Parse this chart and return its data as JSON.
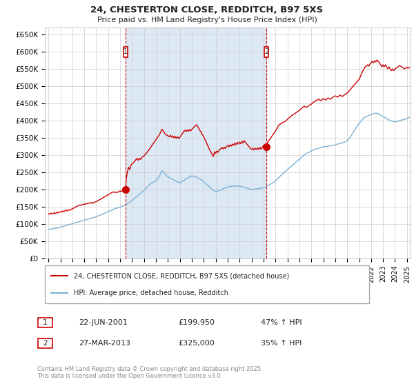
{
  "title": "24, CHESTERTON CLOSE, REDDITCH, B97 5XS",
  "subtitle": "Price paid vs. HM Land Registry's House Price Index (HPI)",
  "ylim": [
    0,
    670000
  ],
  "yticks": [
    0,
    50000,
    100000,
    150000,
    200000,
    250000,
    300000,
    350000,
    400000,
    450000,
    500000,
    550000,
    600000,
    650000
  ],
  "xlim_start": 1994.7,
  "xlim_end": 2025.3,
  "bg_color": "#ffffff",
  "chart_bg": "#ffffff",
  "shade_color": "#dde8f5",
  "grid_color": "#cccccc",
  "red_line_color": "#cc0000",
  "blue_line_color": "#7ab0d4",
  "dashed_line_color": "#cc0000",
  "marker1_x": 2001.47,
  "marker1_y": 199950,
  "marker2_x": 2013.23,
  "marker2_y": 325000,
  "legend_red": "24, CHESTERTON CLOSE, REDDITCH, B97 5XS (detached house)",
  "legend_blue": "HPI: Average price, detached house, Redditch",
  "table_rows": [
    {
      "num": "1",
      "date": "22-JUN-2001",
      "price": "£199,950",
      "change": "47% ↑ HPI"
    },
    {
      "num": "2",
      "date": "27-MAR-2013",
      "price": "£325,000",
      "change": "35% ↑ HPI"
    }
  ],
  "footer": "Contains HM Land Registry data © Crown copyright and database right 2025.\nThis data is licensed under the Open Government Licence v3.0.",
  "red_data": [
    [
      1995.0,
      130000
    ],
    [
      1995.1,
      128000
    ],
    [
      1995.2,
      132000
    ],
    [
      1995.3,
      129000
    ],
    [
      1995.4,
      131000
    ],
    [
      1995.5,
      133000
    ],
    [
      1995.6,
      130000
    ],
    [
      1995.7,
      134000
    ],
    [
      1995.8,
      132000
    ],
    [
      1995.9,
      135000
    ],
    [
      1996.0,
      136000
    ],
    [
      1996.1,
      134000
    ],
    [
      1996.2,
      138000
    ],
    [
      1996.3,
      136000
    ],
    [
      1996.4,
      139000
    ],
    [
      1996.5,
      140000
    ],
    [
      1996.6,
      138000
    ],
    [
      1996.7,
      142000
    ],
    [
      1996.8,
      140000
    ],
    [
      1996.9,
      143000
    ],
    [
      1997.0,
      144000
    ],
    [
      1997.1,
      146000
    ],
    [
      1997.2,
      148000
    ],
    [
      1997.3,
      150000
    ],
    [
      1997.4,
      152000
    ],
    [
      1997.5,
      153000
    ],
    [
      1997.6,
      155000
    ],
    [
      1997.7,
      154000
    ],
    [
      1997.8,
      156000
    ],
    [
      1997.9,
      157000
    ],
    [
      1998.0,
      158000
    ],
    [
      1998.1,
      157000
    ],
    [
      1998.2,
      160000
    ],
    [
      1998.3,
      159000
    ],
    [
      1998.4,
      161000
    ],
    [
      1998.5,
      162000
    ],
    [
      1998.6,
      160000
    ],
    [
      1998.7,
      163000
    ],
    [
      1998.8,
      161000
    ],
    [
      1998.9,
      164000
    ],
    [
      1999.0,
      165000
    ],
    [
      1999.1,
      167000
    ],
    [
      1999.2,
      169000
    ],
    [
      1999.3,
      171000
    ],
    [
      1999.4,
      173000
    ],
    [
      1999.5,
      175000
    ],
    [
      1999.6,
      177000
    ],
    [
      1999.7,
      179000
    ],
    [
      1999.8,
      181000
    ],
    [
      1999.9,
      183000
    ],
    [
      2000.0,
      185000
    ],
    [
      2000.1,
      187000
    ],
    [
      2000.2,
      189000
    ],
    [
      2000.3,
      191000
    ],
    [
      2000.4,
      193000
    ],
    [
      2000.5,
      193000
    ],
    [
      2000.6,
      191000
    ],
    [
      2000.7,
      193000
    ],
    [
      2000.8,
      192000
    ],
    [
      2000.9,
      194000
    ],
    [
      2001.0,
      196000
    ],
    [
      2001.1,
      194000
    ],
    [
      2001.2,
      197000
    ],
    [
      2001.3,
      196000
    ],
    [
      2001.47,
      199950
    ],
    [
      2001.5,
      230000
    ],
    [
      2001.6,
      250000
    ],
    [
      2001.7,
      265000
    ],
    [
      2001.8,
      258000
    ],
    [
      2001.9,
      270000
    ],
    [
      2002.0,
      275000
    ],
    [
      2002.1,
      278000
    ],
    [
      2002.2,
      282000
    ],
    [
      2002.3,
      286000
    ],
    [
      2002.4,
      290000
    ],
    [
      2002.5,
      285000
    ],
    [
      2002.6,
      291000
    ],
    [
      2002.7,
      287000
    ],
    [
      2002.8,
      293000
    ],
    [
      2002.9,
      295000
    ],
    [
      2003.0,
      298000
    ],
    [
      2003.1,
      302000
    ],
    [
      2003.2,
      306000
    ],
    [
      2003.3,
      310000
    ],
    [
      2003.4,
      315000
    ],
    [
      2003.5,
      320000
    ],
    [
      2003.6,
      325000
    ],
    [
      2003.7,
      330000
    ],
    [
      2003.8,
      335000
    ],
    [
      2003.9,
      340000
    ],
    [
      2004.0,
      345000
    ],
    [
      2004.1,
      350000
    ],
    [
      2004.2,
      355000
    ],
    [
      2004.3,
      360000
    ],
    [
      2004.4,
      368000
    ],
    [
      2004.5,
      375000
    ],
    [
      2004.6,
      370000
    ],
    [
      2004.7,
      365000
    ],
    [
      2004.8,
      360000
    ],
    [
      2004.9,
      358000
    ],
    [
      2005.0,
      356000
    ],
    [
      2005.1,
      353000
    ],
    [
      2005.2,
      358000
    ],
    [
      2005.3,
      352000
    ],
    [
      2005.4,
      356000
    ],
    [
      2005.5,
      350000
    ],
    [
      2005.6,
      354000
    ],
    [
      2005.7,
      349000
    ],
    [
      2005.8,
      353000
    ],
    [
      2005.9,
      348000
    ],
    [
      2006.0,
      352000
    ],
    [
      2006.1,
      357000
    ],
    [
      2006.2,
      362000
    ],
    [
      2006.3,
      367000
    ],
    [
      2006.4,
      372000
    ],
    [
      2006.5,
      368000
    ],
    [
      2006.6,
      373000
    ],
    [
      2006.7,
      369000
    ],
    [
      2006.8,
      374000
    ],
    [
      2006.9,
      370000
    ],
    [
      2007.0,
      375000
    ],
    [
      2007.1,
      378000
    ],
    [
      2007.2,
      382000
    ],
    [
      2007.3,
      385000
    ],
    [
      2007.4,
      388000
    ],
    [
      2007.5,
      382000
    ],
    [
      2007.6,
      376000
    ],
    [
      2007.7,
      370000
    ],
    [
      2007.8,
      365000
    ],
    [
      2007.9,
      358000
    ],
    [
      2008.0,
      352000
    ],
    [
      2008.1,
      345000
    ],
    [
      2008.2,
      338000
    ],
    [
      2008.3,
      330000
    ],
    [
      2008.4,
      322000
    ],
    [
      2008.5,
      315000
    ],
    [
      2008.6,
      308000
    ],
    [
      2008.7,
      302000
    ],
    [
      2008.8,
      296000
    ],
    [
      2008.9,
      310000
    ],
    [
      2009.0,
      305000
    ],
    [
      2009.1,
      312000
    ],
    [
      2009.2,
      308000
    ],
    [
      2009.3,
      315000
    ],
    [
      2009.4,
      318000
    ],
    [
      2009.5,
      322000
    ],
    [
      2009.6,
      318000
    ],
    [
      2009.7,
      323000
    ],
    [
      2009.8,
      319000
    ],
    [
      2009.9,
      325000
    ],
    [
      2010.0,
      328000
    ],
    [
      2010.1,
      324000
    ],
    [
      2010.2,
      330000
    ],
    [
      2010.3,
      326000
    ],
    [
      2010.4,
      332000
    ],
    [
      2010.5,
      328000
    ],
    [
      2010.6,
      335000
    ],
    [
      2010.7,
      330000
    ],
    [
      2010.8,
      337000
    ],
    [
      2010.9,
      332000
    ],
    [
      2011.0,
      338000
    ],
    [
      2011.1,
      333000
    ],
    [
      2011.2,
      340000
    ],
    [
      2011.3,
      335000
    ],
    [
      2011.4,
      342000
    ],
    [
      2011.5,
      337000
    ],
    [
      2011.6,
      332000
    ],
    [
      2011.7,
      328000
    ],
    [
      2011.8,
      324000
    ],
    [
      2011.9,
      320000
    ],
    [
      2012.0,
      316000
    ],
    [
      2012.1,
      320000
    ],
    [
      2012.2,
      315000
    ],
    [
      2012.3,
      320000
    ],
    [
      2012.4,
      316000
    ],
    [
      2012.5,
      321000
    ],
    [
      2012.6,
      316000
    ],
    [
      2012.7,
      322000
    ],
    [
      2012.8,
      317000
    ],
    [
      2012.9,
      323000
    ],
    [
      2013.0,
      328000
    ],
    [
      2013.1,
      323000
    ],
    [
      2013.2,
      329000
    ],
    [
      2013.23,
      325000
    ],
    [
      2013.3,
      335000
    ],
    [
      2013.4,
      340000
    ],
    [
      2013.5,
      345000
    ],
    [
      2013.6,
      350000
    ],
    [
      2013.7,
      355000
    ],
    [
      2013.8,
      360000
    ],
    [
      2013.9,
      365000
    ],
    [
      2014.0,
      370000
    ],
    [
      2014.1,
      376000
    ],
    [
      2014.2,
      382000
    ],
    [
      2014.3,
      388000
    ],
    [
      2014.5,
      392000
    ],
    [
      2014.7,
      396000
    ],
    [
      2014.9,
      400000
    ],
    [
      2015.0,
      404000
    ],
    [
      2015.2,
      410000
    ],
    [
      2015.4,
      416000
    ],
    [
      2015.6,
      420000
    ],
    [
      2015.8,
      425000
    ],
    [
      2016.0,
      430000
    ],
    [
      2016.2,
      436000
    ],
    [
      2016.4,
      442000
    ],
    [
      2016.6,
      438000
    ],
    [
      2016.8,
      444000
    ],
    [
      2017.0,
      448000
    ],
    [
      2017.2,
      454000
    ],
    [
      2017.4,
      458000
    ],
    [
      2017.6,
      462000
    ],
    [
      2017.8,
      458000
    ],
    [
      2018.0,
      464000
    ],
    [
      2018.2,
      460000
    ],
    [
      2018.4,
      466000
    ],
    [
      2018.6,
      462000
    ],
    [
      2018.8,
      468000
    ],
    [
      2019.0,
      472000
    ],
    [
      2019.2,
      468000
    ],
    [
      2019.4,
      474000
    ],
    [
      2019.6,
      470000
    ],
    [
      2019.8,
      476000
    ],
    [
      2020.0,
      480000
    ],
    [
      2020.2,
      488000
    ],
    [
      2020.4,
      496000
    ],
    [
      2020.6,
      504000
    ],
    [
      2020.8,
      512000
    ],
    [
      2021.0,
      520000
    ],
    [
      2021.1,
      528000
    ],
    [
      2021.2,
      536000
    ],
    [
      2021.3,
      544000
    ],
    [
      2021.4,
      550000
    ],
    [
      2021.5,
      556000
    ],
    [
      2021.6,
      558000
    ],
    [
      2021.7,
      562000
    ],
    [
      2021.8,
      558000
    ],
    [
      2021.9,
      564000
    ],
    [
      2022.0,
      568000
    ],
    [
      2022.1,
      572000
    ],
    [
      2022.2,
      568000
    ],
    [
      2022.3,
      574000
    ],
    [
      2022.4,
      570000
    ],
    [
      2022.5,
      576000
    ],
    [
      2022.6,
      572000
    ],
    [
      2022.7,
      568000
    ],
    [
      2022.8,
      562000
    ],
    [
      2022.9,
      556000
    ],
    [
      2023.0,
      562000
    ],
    [
      2023.1,
      556000
    ],
    [
      2023.2,
      562000
    ],
    [
      2023.3,
      556000
    ],
    [
      2023.4,
      550000
    ],
    [
      2023.5,
      556000
    ],
    [
      2023.6,
      550000
    ],
    [
      2023.7,
      545000
    ],
    [
      2023.8,
      550000
    ],
    [
      2023.9,
      545000
    ],
    [
      2024.0,
      550000
    ],
    [
      2024.2,
      555000
    ],
    [
      2024.4,
      560000
    ],
    [
      2024.6,
      555000
    ],
    [
      2024.8,
      550000
    ],
    [
      2025.0,
      555000
    ],
    [
      2025.1,
      552000
    ],
    [
      2025.2,
      555000
    ]
  ],
  "blue_data": [
    [
      1995.0,
      85000
    ],
    [
      1995.1,
      84000
    ],
    [
      1995.2,
      86000
    ],
    [
      1995.3,
      85000
    ],
    [
      1995.4,
      87000
    ],
    [
      1995.5,
      88000
    ],
    [
      1995.6,
      87000
    ],
    [
      1995.7,
      89000
    ],
    [
      1995.8,
      88000
    ],
    [
      1995.9,
      90000
    ],
    [
      1996.0,
      91000
    ],
    [
      1996.2,
      93000
    ],
    [
      1996.4,
      95000
    ],
    [
      1996.6,
      97000
    ],
    [
      1996.8,
      99000
    ],
    [
      1997.0,
      101000
    ],
    [
      1997.2,
      103000
    ],
    [
      1997.4,
      105000
    ],
    [
      1997.6,
      107000
    ],
    [
      1997.8,
      109000
    ],
    [
      1998.0,
      111000
    ],
    [
      1998.2,
      113000
    ],
    [
      1998.4,
      115000
    ],
    [
      1998.6,
      117000
    ],
    [
      1998.8,
      119000
    ],
    [
      1999.0,
      121000
    ],
    [
      1999.2,
      124000
    ],
    [
      1999.4,
      127000
    ],
    [
      1999.6,
      130000
    ],
    [
      1999.8,
      133000
    ],
    [
      2000.0,
      136000
    ],
    [
      2000.2,
      139000
    ],
    [
      2000.4,
      142000
    ],
    [
      2000.6,
      145000
    ],
    [
      2000.8,
      147000
    ],
    [
      2001.0,
      149000
    ],
    [
      2001.2,
      152000
    ],
    [
      2001.4,
      155000
    ],
    [
      2001.6,
      159000
    ],
    [
      2001.8,
      163000
    ],
    [
      2002.0,
      168000
    ],
    [
      2002.2,
      174000
    ],
    [
      2002.4,
      180000
    ],
    [
      2002.6,
      186000
    ],
    [
      2002.8,
      192000
    ],
    [
      2003.0,
      198000
    ],
    [
      2003.2,
      205000
    ],
    [
      2003.4,
      212000
    ],
    [
      2003.6,
      218000
    ],
    [
      2003.8,
      222000
    ],
    [
      2004.0,
      226000
    ],
    [
      2004.1,
      230000
    ],
    [
      2004.2,
      235000
    ],
    [
      2004.3,
      240000
    ],
    [
      2004.4,
      248000
    ],
    [
      2004.5,
      255000
    ],
    [
      2004.6,
      252000
    ],
    [
      2004.7,
      248000
    ],
    [
      2004.8,
      244000
    ],
    [
      2004.9,
      240000
    ],
    [
      2005.0,
      237000
    ],
    [
      2005.2,
      233000
    ],
    [
      2005.4,
      229000
    ],
    [
      2005.6,
      226000
    ],
    [
      2005.8,
      222000
    ],
    [
      2006.0,
      220000
    ],
    [
      2006.2,
      224000
    ],
    [
      2006.4,
      228000
    ],
    [
      2006.6,
      232000
    ],
    [
      2006.8,
      236000
    ],
    [
      2007.0,
      240000
    ],
    [
      2007.2,
      238000
    ],
    [
      2007.4,
      236000
    ],
    [
      2007.6,
      232000
    ],
    [
      2007.8,
      228000
    ],
    [
      2008.0,
      222000
    ],
    [
      2008.2,
      216000
    ],
    [
      2008.4,
      210000
    ],
    [
      2008.6,
      204000
    ],
    [
      2008.8,
      198000
    ],
    [
      2009.0,
      193000
    ],
    [
      2009.2,
      196000
    ],
    [
      2009.4,
      199000
    ],
    [
      2009.6,
      202000
    ],
    [
      2009.8,
      205000
    ],
    [
      2010.0,
      207000
    ],
    [
      2010.2,
      209000
    ],
    [
      2010.4,
      210000
    ],
    [
      2010.6,
      210000
    ],
    [
      2010.8,
      210000
    ],
    [
      2011.0,
      210000
    ],
    [
      2011.2,
      208000
    ],
    [
      2011.4,
      206000
    ],
    [
      2011.6,
      204000
    ],
    [
      2011.8,
      202000
    ],
    [
      2012.0,
      200000
    ],
    [
      2012.2,
      201000
    ],
    [
      2012.4,
      202000
    ],
    [
      2012.6,
      203000
    ],
    [
      2012.8,
      204000
    ],
    [
      2013.0,
      205000
    ],
    [
      2013.2,
      208000
    ],
    [
      2013.4,
      212000
    ],
    [
      2013.6,
      216000
    ],
    [
      2013.8,
      220000
    ],
    [
      2014.0,
      225000
    ],
    [
      2014.2,
      232000
    ],
    [
      2014.4,
      239000
    ],
    [
      2014.6,
      246000
    ],
    [
      2014.8,
      252000
    ],
    [
      2015.0,
      258000
    ],
    [
      2015.2,
      264000
    ],
    [
      2015.4,
      270000
    ],
    [
      2015.6,
      276000
    ],
    [
      2015.8,
      282000
    ],
    [
      2016.0,
      288000
    ],
    [
      2016.2,
      294000
    ],
    [
      2016.4,
      300000
    ],
    [
      2016.6,
      305000
    ],
    [
      2016.8,
      308000
    ],
    [
      2017.0,
      312000
    ],
    [
      2017.2,
      316000
    ],
    [
      2017.4,
      318000
    ],
    [
      2017.6,
      320000
    ],
    [
      2017.8,
      322000
    ],
    [
      2018.0,
      324000
    ],
    [
      2018.2,
      325000
    ],
    [
      2018.4,
      326000
    ],
    [
      2018.6,
      327000
    ],
    [
      2018.8,
      328000
    ],
    [
      2019.0,
      330000
    ],
    [
      2019.2,
      332000
    ],
    [
      2019.4,
      334000
    ],
    [
      2019.6,
      336000
    ],
    [
      2019.8,
      338000
    ],
    [
      2020.0,
      342000
    ],
    [
      2020.2,
      350000
    ],
    [
      2020.4,
      360000
    ],
    [
      2020.6,
      372000
    ],
    [
      2020.8,
      382000
    ],
    [
      2021.0,
      392000
    ],
    [
      2021.2,
      400000
    ],
    [
      2021.4,
      408000
    ],
    [
      2021.6,
      412000
    ],
    [
      2021.8,
      415000
    ],
    [
      2022.0,
      418000
    ],
    [
      2022.2,
      420000
    ],
    [
      2022.4,
      422000
    ],
    [
      2022.6,
      420000
    ],
    [
      2022.8,
      416000
    ],
    [
      2023.0,
      412000
    ],
    [
      2023.2,
      408000
    ],
    [
      2023.4,
      404000
    ],
    [
      2023.6,
      400000
    ],
    [
      2023.8,
      398000
    ],
    [
      2024.0,
      396000
    ],
    [
      2024.2,
      398000
    ],
    [
      2024.4,
      400000
    ],
    [
      2024.6,
      402000
    ],
    [
      2024.8,
      404000
    ],
    [
      2025.0,
      406000
    ],
    [
      2025.1,
      408000
    ],
    [
      2025.2,
      410000
    ]
  ]
}
